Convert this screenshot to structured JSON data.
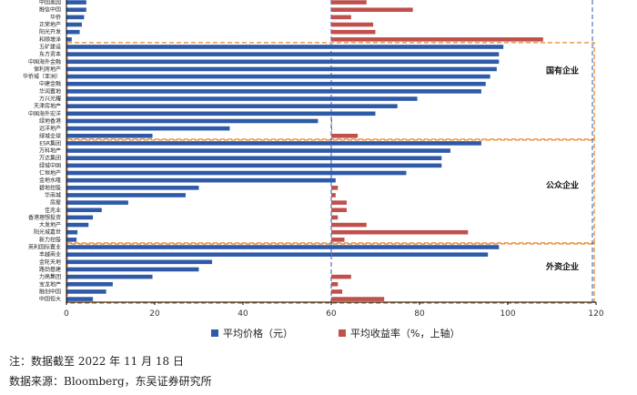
{
  "chart_data": {
    "type": "bar",
    "orientation": "horizontal",
    "categories": [
      "中国奥园",
      "融信中国",
      "华侨",
      "正荣地产",
      "阳光开发",
      "和顺增泽",
      "五矿建设",
      "东方资本",
      "中国海外金融",
      "保利房地产",
      "华侨城（亚洲）",
      "中建金融",
      "华润置地",
      "方兴光耀",
      "天津房地产",
      "中国海外宏洋",
      "绿地香港",
      "远洋地产",
      "绿城全球",
      "ESR集团",
      "万科地产",
      "万达集团",
      "绿城中国",
      "仁恒地产",
      "金地水隆",
      "碧地控股",
      "华南城",
      "房屋",
      "佳兆业",
      "香港理想投资",
      "大发地产",
      "阳光城嘉世",
      "新力控股",
      "英利国际置业",
      "丰越商业",
      "金轮天地",
      "路劲基建",
      "力高集团",
      "宝龙地产",
      "融创中国",
      "中国恒大"
    ],
    "series": [
      {
        "name": "平均价格（元）",
        "axis": "bottom",
        "color": "#2e5aa8",
        "values": [
          4.5,
          4.5,
          4,
          3.5,
          3,
          1.2,
          99,
          98,
          98,
          97.5,
          96,
          95,
          94,
          79.5,
          75,
          70,
          57,
          37,
          19.5,
          94,
          87,
          85,
          85,
          77,
          61,
          30,
          27,
          14,
          8,
          6,
          5,
          2.5,
          2.3,
          98,
          95.5,
          33,
          30,
          19.5,
          10.5,
          9,
          6
        ]
      },
      {
        "name": "平均收益率（%，上轴）",
        "axis": "top",
        "color": "#c0504d",
        "values": [
          68,
          78.5,
          64.5,
          69.5,
          70,
          108,
          0,
          0,
          0,
          0,
          0,
          0,
          0,
          0,
          0,
          0,
          0.2,
          0.6,
          66,
          0,
          0,
          0,
          0,
          0,
          0,
          61.5,
          61,
          63.5,
          63.5,
          61.5,
          68,
          91,
          63,
          0,
          0.4,
          0,
          0,
          64.5,
          61.5,
          62.5,
          72
        ]
      }
    ],
    "groups": [
      {
        "label": "国有企业",
        "start": 6,
        "end": 18
      },
      {
        "label": "公众企业",
        "start": 19,
        "end": 32
      },
      {
        "label": "外资企业",
        "start": 33,
        "end": 40
      }
    ],
    "x_ticks": [
      0,
      20,
      40,
      60,
      80,
      100,
      120
    ],
    "xlim": [
      0,
      120
    ],
    "legend_position": "bottom"
  },
  "footnotes": {
    "note": "注：数据截至 2022 年 11 月 18 日",
    "source": "数据来源：Bloomberg，东吴证券研究所"
  }
}
